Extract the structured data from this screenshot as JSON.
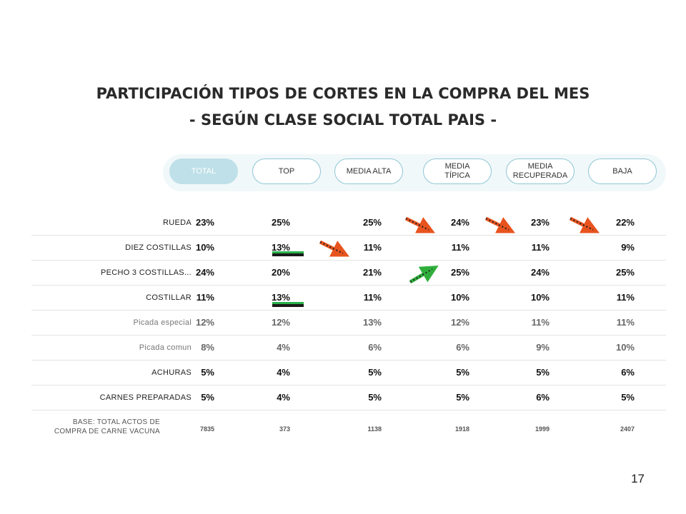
{
  "title": {
    "line1": "PARTICIPACIÓN TIPOS DE CORTES EN LA COMPRA DEL MES",
    "line2": "- SEGÚN CLASE SOCIAL TOTAL PAIS -"
  },
  "tabs": [
    {
      "label": "TOTAL",
      "active": true
    },
    {
      "label": "TOP",
      "active": false
    },
    {
      "label": "MEDIA ALTA",
      "active": false
    },
    {
      "label": "MEDIA TÍPICA",
      "line1": "MEDIA",
      "line2": "TÍPICA",
      "active": false
    },
    {
      "label": "MEDIA RECUPERADA",
      "line1": "MEDIA",
      "line2": "RECUPERADA",
      "active": false
    },
    {
      "label": "BAJA",
      "active": false
    }
  ],
  "rows": [
    {
      "label": "RUEDA",
      "values": [
        "23%",
        "25%",
        "25%",
        "24%",
        "23%",
        "22%"
      ]
    },
    {
      "label": "DIEZ COSTILLAS",
      "values": [
        "10%",
        "13%",
        "11%",
        "11%",
        "11%",
        "9%"
      ]
    },
    {
      "label": "PECHO 3 COSTILLAS...",
      "values": [
        "24%",
        "20%",
        "21%",
        "25%",
        "24%",
        "25%"
      ]
    },
    {
      "label": "COSTILLAR",
      "values": [
        "11%",
        "13%",
        "11%",
        "10%",
        "10%",
        "11%"
      ]
    },
    {
      "label": "Picada especial",
      "values": [
        "12%",
        "12%",
        "13%",
        "12%",
        "11%",
        "11%"
      ]
    },
    {
      "label": "Picada comun",
      "values": [
        "8%",
        "4%",
        "6%",
        "6%",
        "9%",
        "10%"
      ]
    },
    {
      "label": "ACHURAS",
      "values": [
        "5%",
        "4%",
        "5%",
        "5%",
        "5%",
        "6%"
      ]
    },
    {
      "label": "CARNES PREPARADAS",
      "values": [
        "5%",
        "4%",
        "5%",
        "5%",
        "6%",
        "5%"
      ]
    }
  ],
  "base": {
    "line1": "BASE: TOTAL ACTOS DE",
    "line2": "COMPRA DE CARNE VACUNA",
    "values": [
      "7835",
      "373",
      "1138",
      "1918",
      "1999",
      "2407"
    ]
  },
  "page_number": "17",
  "colors": {
    "accent": "#bfe0e8",
    "tab_border": "#8fc6d3",
    "down_arrow": "#e8541e",
    "up_arrow": "#2fae3c"
  }
}
